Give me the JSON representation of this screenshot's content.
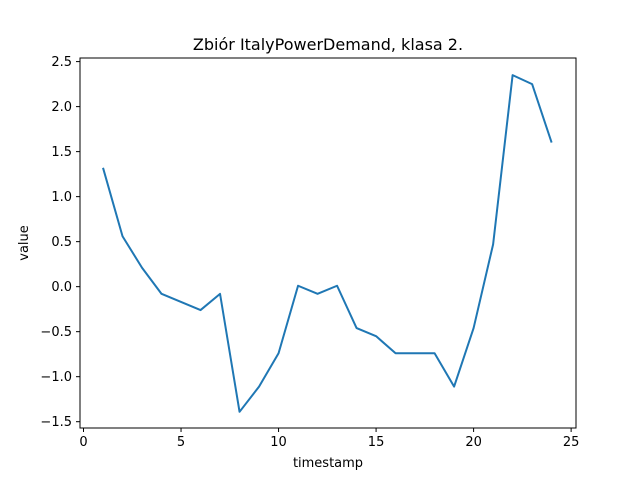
{
  "chart_data": {
    "type": "line",
    "title": "Zbiór ItalyPowerDemand, klasa 2.",
    "xlabel": "timestamp",
    "ylabel": "value",
    "xlim": [
      0,
      25
    ],
    "ylim": [
      -1.55,
      2.5
    ],
    "xticks": [
      0,
      5,
      10,
      15,
      20,
      25
    ],
    "yticks": [
      -1.5,
      -1.0,
      -0.5,
      0.0,
      0.5,
      1.0,
      1.5,
      2.0,
      2.5
    ],
    "ytick_labels": [
      "−1.5",
      "−1.0",
      "−0.5",
      "0.0",
      "0.5",
      "1.0",
      "1.5",
      "2.0",
      "2.5"
    ],
    "grid": false,
    "color": "#1f77b4",
    "series": [
      {
        "x": [
          1,
          2,
          3,
          4,
          5,
          6,
          7,
          8,
          9,
          10,
          11,
          12,
          13,
          14,
          15,
          16,
          17,
          18,
          19,
          20,
          21,
          22,
          23,
          24
        ],
        "values": [
          1.32,
          0.56,
          0.21,
          -0.08,
          -0.17,
          -0.26,
          -0.08,
          -1.39,
          -1.11,
          -0.74,
          0.01,
          -0.08,
          0.01,
          -0.46,
          -0.55,
          -0.74,
          -0.74,
          -0.74,
          -1.11,
          -0.46,
          0.47,
          2.35,
          2.25,
          1.6
        ]
      }
    ]
  }
}
